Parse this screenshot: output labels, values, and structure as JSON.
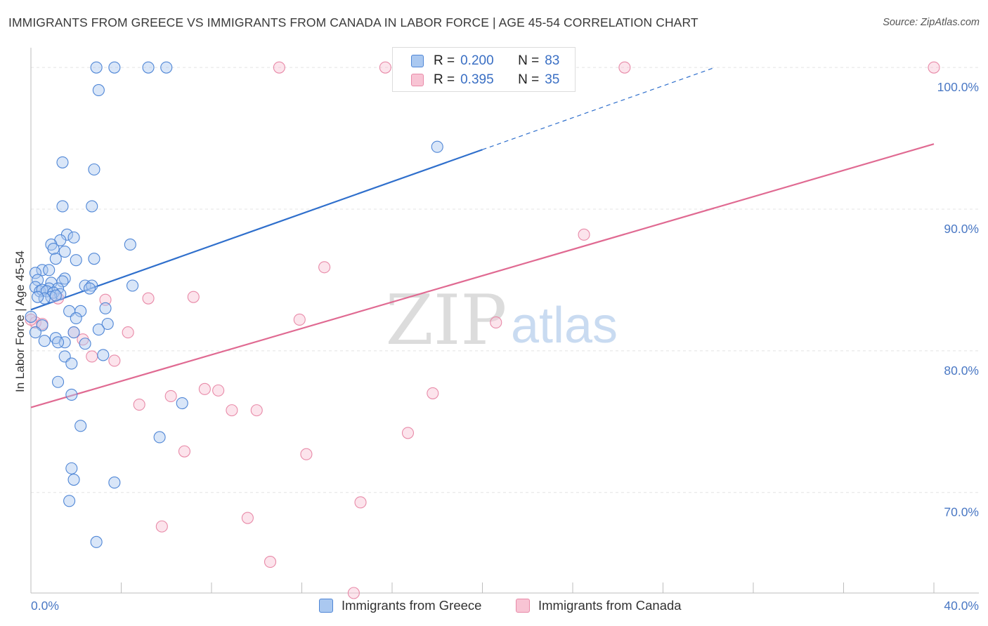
{
  "title": "IMMIGRANTS FROM GREECE VS IMMIGRANTS FROM CANADA IN LABOR FORCE | AGE 45-54 CORRELATION CHART",
  "source": "Source: ZipAtlas.com",
  "watermark": {
    "zip": "ZIP",
    "atlas": "atlas"
  },
  "colors": {
    "greece_fill": "#aac8f0",
    "greece_stroke": "#4f86d6",
    "greece_line": "#2f6fcc",
    "canada_fill": "#f8c4d4",
    "canada_stroke": "#e88aa8",
    "canada_line": "#e06a92",
    "grid": "#e3e3e3",
    "axis_label": "#4a78c4"
  },
  "legend": {
    "rows": [
      {
        "r_label": "R =",
        "r_value": "0.200",
        "n_label": "N =",
        "n_value": "83"
      },
      {
        "r_label": "R =",
        "r_value": "0.395",
        "n_label": "N =",
        "n_value": "35"
      }
    ]
  },
  "chart_data": {
    "type": "scatter",
    "xlabel": "",
    "ylabel": "In Labor Force | Age 45-54",
    "xlim": [
      0,
      40
    ],
    "ylim": [
      62.9,
      100.9
    ],
    "x_tick_labels": [
      {
        "value": 0,
        "label": "0.0%"
      },
      {
        "value": 40,
        "label": "40.0%"
      }
    ],
    "x_minor_ticks": [
      4,
      8,
      12,
      16,
      20,
      24,
      28,
      32,
      36,
      40
    ],
    "y_ticks": [
      {
        "value": 70,
        "label": "70.0%"
      },
      {
        "value": 80,
        "label": "80.0%"
      },
      {
        "value": 90,
        "label": "90.0%"
      },
      {
        "value": 100,
        "label": "100.0%"
      }
    ],
    "grid": true,
    "series": [
      {
        "name": "Immigrants from Greece",
        "color_key": "greece",
        "r": 0.2,
        "n": 83,
        "trend": {
          "x0": 0,
          "y0": 82.9,
          "x1": 20,
          "y1": 94.2,
          "dashed_to_x": 30.3,
          "dashed_to_y": 100.0
        },
        "points": [
          [
            2.9,
            100
          ],
          [
            3.7,
            100
          ],
          [
            5.2,
            100
          ],
          [
            6.0,
            100
          ],
          [
            3.0,
            98.4
          ],
          [
            1.4,
            93.3
          ],
          [
            2.8,
            92.8
          ],
          [
            1.4,
            90.2
          ],
          [
            2.7,
            90.2
          ],
          [
            1.6,
            88.2
          ],
          [
            1.9,
            88.0
          ],
          [
            1.3,
            87.8
          ],
          [
            0.9,
            87.5
          ],
          [
            1.0,
            87.2
          ],
          [
            1.5,
            87.0
          ],
          [
            4.4,
            87.5
          ],
          [
            2.0,
            86.4
          ],
          [
            2.8,
            86.5
          ],
          [
            1.1,
            86.5
          ],
          [
            0.5,
            85.7
          ],
          [
            0.2,
            85.5
          ],
          [
            0.8,
            85.7
          ],
          [
            1.5,
            85.1
          ],
          [
            0.3,
            85.0
          ],
          [
            1.4,
            84.9
          ],
          [
            0.9,
            84.8
          ],
          [
            2.4,
            84.6
          ],
          [
            2.7,
            84.6
          ],
          [
            4.5,
            84.6
          ],
          [
            0.2,
            84.5
          ],
          [
            0.8,
            84.4
          ],
          [
            1.2,
            84.4
          ],
          [
            0.4,
            84.2
          ],
          [
            0.5,
            84.3
          ],
          [
            0.7,
            84.2
          ],
          [
            1.0,
            84.1
          ],
          [
            1.3,
            84.0
          ],
          [
            0.9,
            83.8
          ],
          [
            1.1,
            83.9
          ],
          [
            0.6,
            83.7
          ],
          [
            0.3,
            83.8
          ],
          [
            2.6,
            84.4
          ],
          [
            3.3,
            83.0
          ],
          [
            0.0,
            82.4
          ],
          [
            1.7,
            82.8
          ],
          [
            2.2,
            82.8
          ],
          [
            2.0,
            82.3
          ],
          [
            0.5,
            81.8
          ],
          [
            3.4,
            81.9
          ],
          [
            3.0,
            81.5
          ],
          [
            0.2,
            81.3
          ],
          [
            1.9,
            81.3
          ],
          [
            1.1,
            80.9
          ],
          [
            1.5,
            80.6
          ],
          [
            0.6,
            80.7
          ],
          [
            1.2,
            80.6
          ],
          [
            2.4,
            80.5
          ],
          [
            3.2,
            79.7
          ],
          [
            1.5,
            79.6
          ],
          [
            1.8,
            79.1
          ],
          [
            1.2,
            77.8
          ],
          [
            1.8,
            76.9
          ],
          [
            6.7,
            76.3
          ],
          [
            2.2,
            74.7
          ],
          [
            5.7,
            73.9
          ],
          [
            1.8,
            71.7
          ],
          [
            1.9,
            70.9
          ],
          [
            3.7,
            70.7
          ],
          [
            1.7,
            69.4
          ],
          [
            2.9,
            66.5
          ],
          [
            18.0,
            94.4
          ]
        ]
      },
      {
        "name": "Immigrants from Canada",
        "color_key": "canada",
        "r": 0.395,
        "n": 35,
        "trend": {
          "x0": 0,
          "y0": 76.0,
          "x1": 40,
          "y1": 94.6
        },
        "points": [
          [
            11.0,
            100
          ],
          [
            15.7,
            100
          ],
          [
            26.3,
            100
          ],
          [
            40.0,
            100
          ],
          [
            24.5,
            88.2
          ],
          [
            13.0,
            85.9
          ],
          [
            5.2,
            83.7
          ],
          [
            7.2,
            83.8
          ],
          [
            3.3,
            83.6
          ],
          [
            1.2,
            83.7
          ],
          [
            0.2,
            82.0
          ],
          [
            0.5,
            81.9
          ],
          [
            11.9,
            82.2
          ],
          [
            20.6,
            82.0
          ],
          [
            4.3,
            81.3
          ],
          [
            1.9,
            81.3
          ],
          [
            2.3,
            80.8
          ],
          [
            2.7,
            79.6
          ],
          [
            3.7,
            79.3
          ],
          [
            17.8,
            77.0
          ],
          [
            6.2,
            76.8
          ],
          [
            7.7,
            77.3
          ],
          [
            8.3,
            77.2
          ],
          [
            4.8,
            76.2
          ],
          [
            8.9,
            75.8
          ],
          [
            10.0,
            75.8
          ],
          [
            16.7,
            74.2
          ],
          [
            6.8,
            72.9
          ],
          [
            12.2,
            72.7
          ],
          [
            14.6,
            69.3
          ],
          [
            9.6,
            68.2
          ],
          [
            5.8,
            67.6
          ],
          [
            10.6,
            65.1
          ],
          [
            14.3,
            62.9
          ],
          [
            0.0,
            82.2
          ]
        ]
      }
    ]
  },
  "bottom_legend": [
    {
      "label": "Immigrants from Greece"
    },
    {
      "label": "Immigrants from Canada"
    }
  ]
}
